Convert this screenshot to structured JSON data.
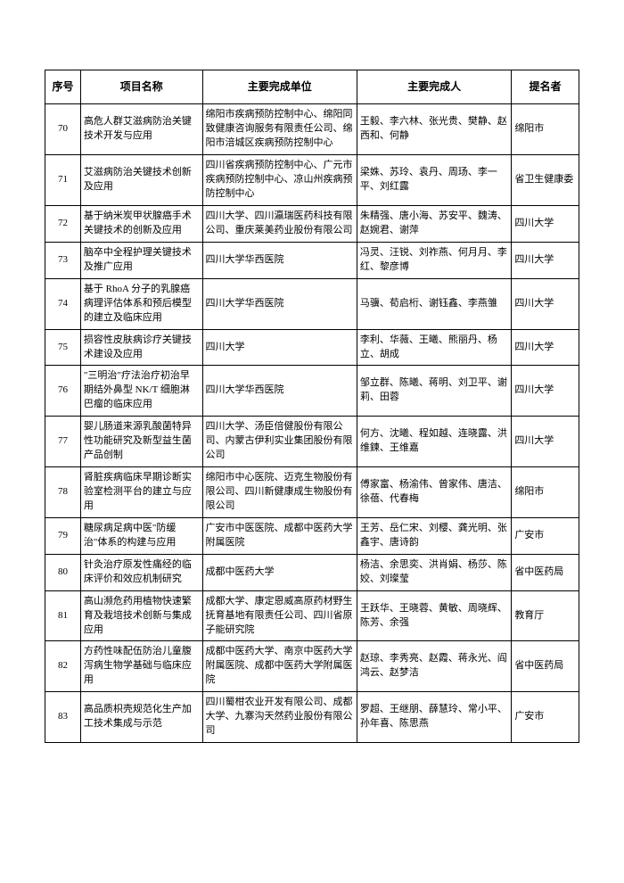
{
  "headers": {
    "seq": "序号",
    "name": "项目名称",
    "org": "主要完成单位",
    "people": "主要完成人",
    "nominator": "提名者"
  },
  "rows": [
    {
      "seq": "70",
      "name": "高危人群艾滋病防治关键技术开发与应用",
      "org": "绵阳市疾病预防控制中心、绵阳同致健康咨询服务有限责任公司、绵阳市涪城区疾病预防控制中心",
      "people": "王毅、李六林、张光贵、樊静、赵西和、何静",
      "nominator": "绵阳市"
    },
    {
      "seq": "71",
      "name": "艾滋病防治关键技术创新及应用",
      "org": "四川省疾病预防控制中心、广元市疾病预防控制中心、凉山州疾病预防控制中心",
      "people": "梁姝、苏玲、袁丹、周玚、李一平、刘红露",
      "nominator": "省卫生健康委"
    },
    {
      "seq": "72",
      "name": "基于纳米炭甲状腺癌手术关键技术的创新及应用",
      "org": "四川大学、四川瀛瑞医药科技有限公司、重庆莱美药业股份有限公司",
      "people": "朱精强、唐小海、苏安平、魏涛、赵婉君、谢萍",
      "nominator": "四川大学"
    },
    {
      "seq": "73",
      "name": "脑卒中全程护理关键技术及推广应用",
      "org": "四川大学华西医院",
      "people": "冯灵、汪锐、刘祚燕、何月月、李红、黎彦博",
      "nominator": "四川大学"
    },
    {
      "seq": "74",
      "name": "基于 RhoA 分子的乳腺癌病理评估体系和预后模型的建立及临床应用",
      "org": "四川大学华西医院",
      "people": "马骥、荀启桁、谢钰鑫、李燕雏",
      "nominator": "四川大学"
    },
    {
      "seq": "75",
      "name": "损容性皮肤病诊疗关键技术建设及应用",
      "org": "四川大学",
      "people": "李利、华薇、王曦、熊丽丹、杨立、胡成",
      "nominator": "四川大学"
    },
    {
      "seq": "76",
      "name": "\"三明治\"疗法治疗初治早期结外鼻型 NK/T 细胞淋巴瘤的临床应用",
      "org": "四川大学华西医院",
      "people": "邹立群、陈曦、蒋明、刘卫平、谢莉、田蓉",
      "nominator": "四川大学"
    },
    {
      "seq": "77",
      "name": "婴儿肠道来源乳酸菌特异性功能研究及新型益生菌产品创制",
      "org": "四川大学、汤臣倍健股份有限公司、内蒙古伊利实业集团股份有限公司",
      "people": "何方、沈曦、程如越、连晓露、洪维鍊、王维嘉",
      "nominator": "四川大学"
    },
    {
      "seq": "78",
      "name": "肾脏疾病临床早期诊断实验室检测平台的建立与应用",
      "org": "绵阳市中心医院、迈克生物股份有限公司、四川新健康成生物股份有限公司",
      "people": "傅家富、杨渝伟、曾家伟、唐洁、徐蓓、代春梅",
      "nominator": "绵阳市"
    },
    {
      "seq": "79",
      "name": "糖尿病足病中医\"防缓治\"体系的构建与应用",
      "org": "广安市中医医院、成都中医药大学附属医院",
      "people": "王芳、岳仁宋、刘樱、龚光明、张鑫宇、唐诗韵",
      "nominator": "广安市"
    },
    {
      "seq": "80",
      "name": "针灸治疗原发性痛经的临床评价和效应机制研究",
      "org": "成都中医药大学",
      "people": "杨洁、余思奕、洪肖娟、杨莎、陈姣、刘璨莹",
      "nominator": "省中医药局"
    },
    {
      "seq": "81",
      "name": "高山濒危药用植物快速繁育及栽培技术创新与集成应用",
      "org": "成都大学、康定恩威高原药材野生抚育基地有限责任公司、四川省原子能研究院",
      "people": "王跃华、王晓蓉、黄敏、周晓辉、陈芳、余强",
      "nominator": "教育厅"
    },
    {
      "seq": "82",
      "name": "方药性味配伍防治儿童腹泻病生物学基础与临床应用",
      "org": "成都中医药大学、南京中医药大学附属医院、成都中医药大学附属医院",
      "people": "赵琼、李秀亮、赵霞、蒋永光、阎鸿云、赵梦洁",
      "nominator": "省中医药局"
    },
    {
      "seq": "83",
      "name": "高品质枳壳规范化生产加工技术集成与示范",
      "org": "四川蜀柑农业开发有限公司、成都大学、九寨沟天然药业股份有限公司",
      "people": "罗超、王继朋、薛慧玲、常小平、孙年喜、陈思燕",
      "nominator": "广安市"
    }
  ]
}
